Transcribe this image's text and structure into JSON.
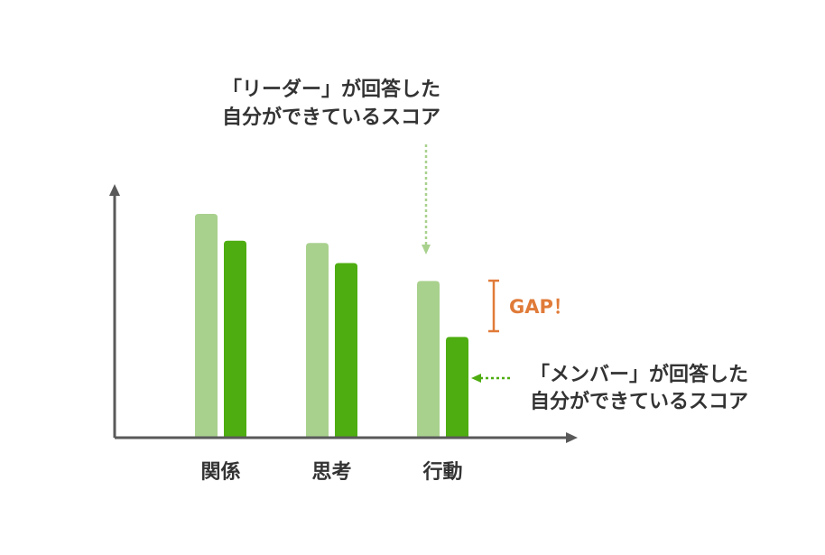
{
  "colors": {
    "leader": "#a9d18e",
    "member": "#4ead10",
    "axis": "#595959",
    "gap": "#e07b39",
    "text": "#333333"
  },
  "chart_data": {
    "type": "bar",
    "categories": [
      "関係",
      "思考",
      "行動"
    ],
    "series": [
      {
        "values": [
          100,
          87,
          70
        ]
      },
      {
        "values": [
          88,
          78,
          45
        ]
      }
    ],
    "ylim": [
      0,
      110
    ],
    "grid": false,
    "annotations": {
      "leader_line1": "「リーダー」が回答した",
      "leader_line2": "自分ができているスコア",
      "member_line1": "「メンバー」が回答した",
      "member_line2": "自分ができているスコア",
      "gap_label": "GAP！"
    }
  }
}
